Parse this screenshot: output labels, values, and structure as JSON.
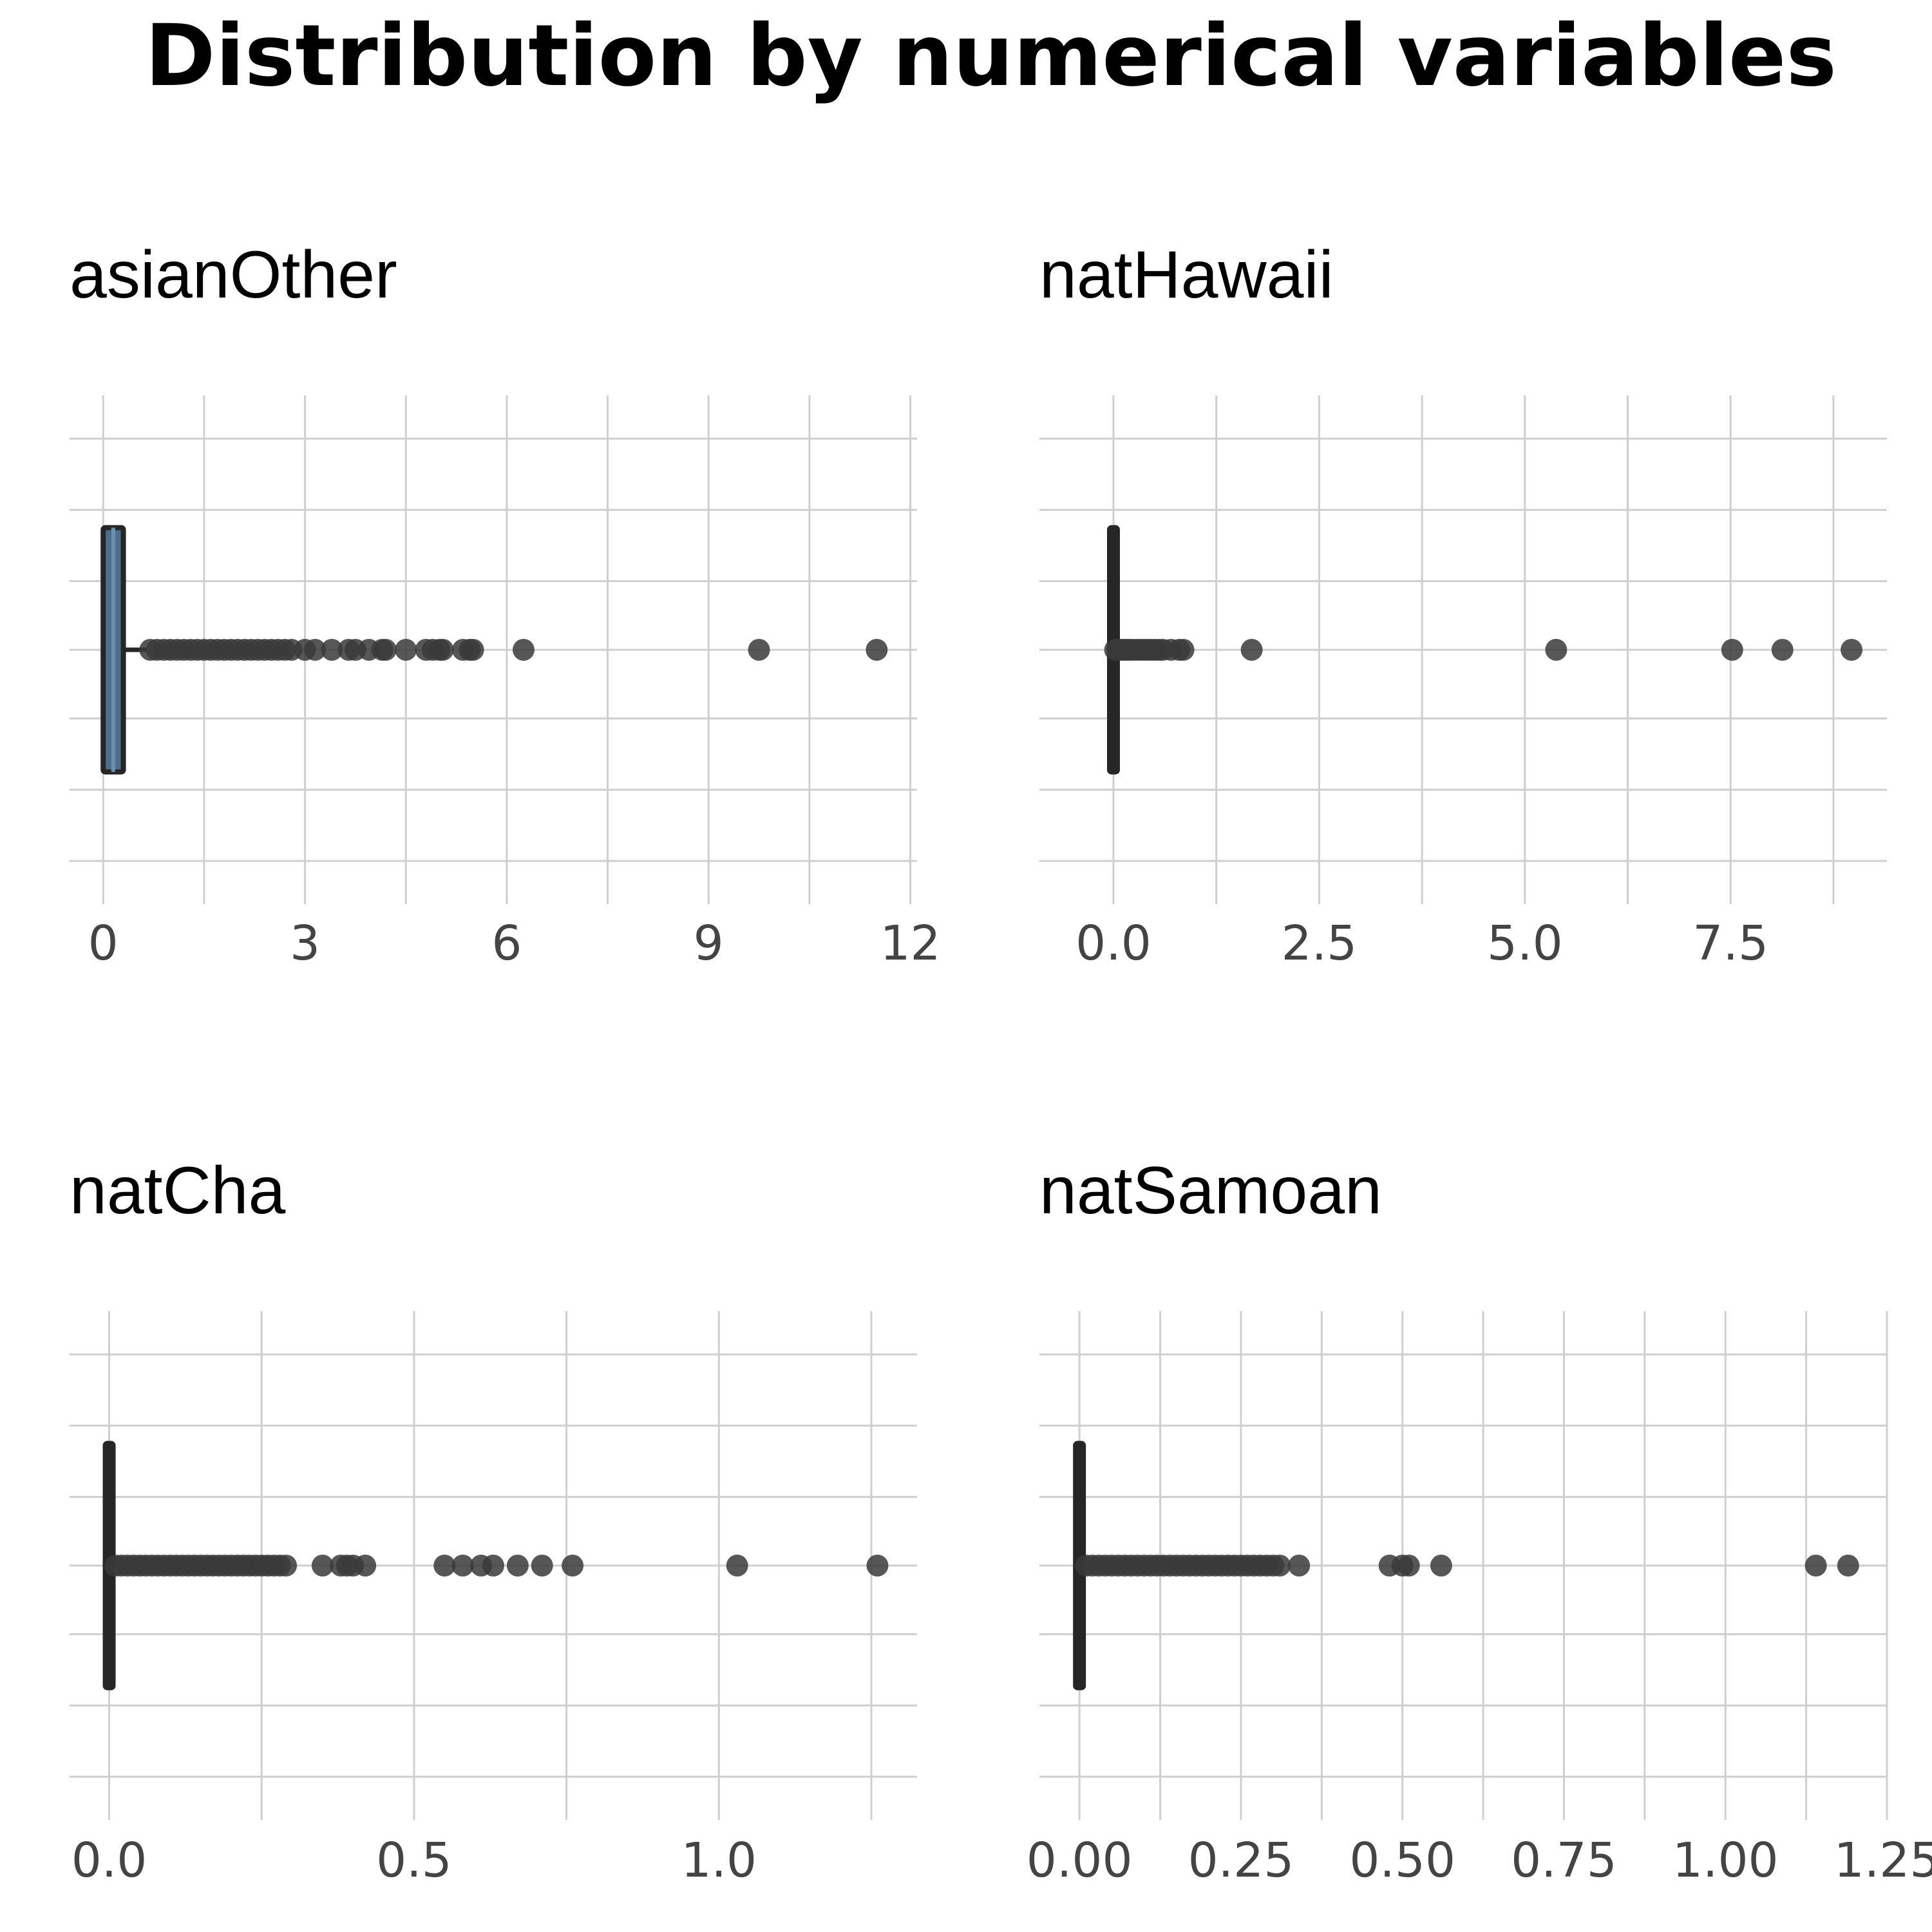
{
  "chart_data": {
    "title": "Distribution by numerical variables",
    "type": "boxplot",
    "colors": {
      "grid": "#cfcfcf",
      "box_fill": "#4f6e8d",
      "outline": "#262626",
      "outlier": "#3a3a3a",
      "text": "#000000",
      "tick_text": "#444444"
    },
    "panels": [
      {
        "title": "asianOther",
        "xlim": [
          -0.5,
          12.1
        ],
        "ticks": [
          0,
          3,
          6,
          9,
          12
        ],
        "tick_labels": [
          "0",
          "3",
          "6",
          "9",
          "12"
        ],
        "box": {
          "q1": 0.0,
          "median": 0.15,
          "q3": 0.3,
          "whisker_low": 0.0,
          "whisker_high": 0.65
        },
        "outliers": [
          0.7,
          0.8,
          0.9,
          1.0,
          1.1,
          1.2,
          1.3,
          1.4,
          1.5,
          1.6,
          1.7,
          1.8,
          1.9,
          2.0,
          2.1,
          2.2,
          2.3,
          2.4,
          2.5,
          2.6,
          2.7,
          2.8,
          3.0,
          3.15,
          3.4,
          3.65,
          3.75,
          3.95,
          4.15,
          4.2,
          4.5,
          4.8,
          4.9,
          5.0,
          5.05,
          5.35,
          5.45,
          5.5,
          6.25,
          9.75,
          11.5
        ]
      },
      {
        "title": "natHawaii",
        "xlim": [
          -0.9,
          9.4
        ],
        "ticks": [
          0.0,
          2.5,
          5.0,
          7.5
        ],
        "tick_labels": [
          "0.0",
          "2.5",
          "5.0",
          "7.5"
        ],
        "box": {
          "q1": 0.0,
          "median": 0.0,
          "q3": 0.0,
          "whisker_low": 0.0,
          "whisker_high": 0.0
        },
        "outliers": [
          0.02,
          0.05,
          0.08,
          0.12,
          0.16,
          0.2,
          0.25,
          0.3,
          0.35,
          0.4,
          0.45,
          0.5,
          0.55,
          0.6,
          0.7,
          0.8,
          0.85,
          1.68,
          5.38,
          7.52,
          8.13,
          8.97
        ]
      },
      {
        "title": "natCha",
        "xlim": [
          -0.065,
          1.325
        ],
        "ticks": [
          0.0,
          0.5,
          1.0
        ],
        "tick_labels": [
          "0.0",
          "0.5",
          "1.0"
        ],
        "box": {
          "q1": 0.0,
          "median": 0.0,
          "q3": 0.0,
          "whisker_low": 0.0,
          "whisker_high": 0.0
        },
        "outliers": [
          0.01,
          0.02,
          0.03,
          0.04,
          0.05,
          0.06,
          0.07,
          0.08,
          0.09,
          0.1,
          0.11,
          0.12,
          0.13,
          0.14,
          0.15,
          0.16,
          0.17,
          0.18,
          0.19,
          0.2,
          0.21,
          0.22,
          0.23,
          0.24,
          0.25,
          0.26,
          0.27,
          0.28,
          0.29,
          0.35,
          0.38,
          0.39,
          0.4,
          0.42,
          0.55,
          0.58,
          0.61,
          0.63,
          0.67,
          0.71,
          0.76,
          1.03,
          1.26
        ]
      },
      {
        "title": "natSamoan",
        "xlim": [
          -0.062,
          1.25
        ],
        "ticks": [
          0.0,
          0.25,
          0.5,
          0.75,
          1.0,
          1.25
        ],
        "tick_labels": [
          "0.00",
          "0.25",
          "0.50",
          "0.75",
          "1.00",
          "1.25"
        ],
        "box": {
          "q1": 0.0,
          "median": 0.0,
          "q3": 0.0,
          "whisker_low": 0.0,
          "whisker_high": 0.0
        },
        "outliers": [
          0.01,
          0.02,
          0.03,
          0.04,
          0.05,
          0.06,
          0.07,
          0.08,
          0.09,
          0.1,
          0.11,
          0.12,
          0.13,
          0.14,
          0.15,
          0.16,
          0.17,
          0.18,
          0.19,
          0.2,
          0.21,
          0.22,
          0.23,
          0.24,
          0.25,
          0.26,
          0.27,
          0.28,
          0.29,
          0.3,
          0.31,
          0.34,
          0.48,
          0.5,
          0.51,
          0.56,
          1.14,
          1.19
        ]
      }
    ]
  }
}
